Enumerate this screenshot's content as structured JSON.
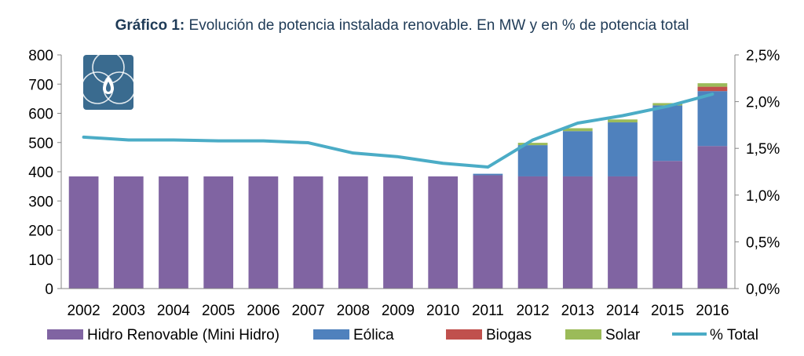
{
  "title": {
    "bold": "Gráfico 1:",
    "rest": " Evolución de potencia instalada renovable. En MW y en % de potencia total"
  },
  "colors": {
    "hidro": "#8064a2",
    "eolica": "#4f81bd",
    "biogas": "#c0504d",
    "solar": "#9bbb59",
    "line": "#4bacc6",
    "axis": "#868686",
    "logo_bg": "#3a6b8f"
  },
  "logo": {
    "icon": "water-drop-logo-icon"
  },
  "chart_data": {
    "type": "bar",
    "stacked": true,
    "categories": [
      "2002",
      "2003",
      "2004",
      "2005",
      "2006",
      "2007",
      "2008",
      "2009",
      "2010",
      "2011",
      "2012",
      "2013",
      "2014",
      "2015",
      "2016"
    ],
    "series": [
      {
        "name": "Hidro Renovable (Mini Hidro)",
        "color_key": "hidro",
        "values": [
          384,
          384,
          384,
          384,
          384,
          384,
          384,
          384,
          384,
          388,
          384,
          384,
          384,
          437,
          488
        ]
      },
      {
        "name": "Eólica",
        "color_key": "eolica",
        "values": [
          0,
          0,
          0,
          0,
          0,
          0,
          0,
          0,
          0,
          5,
          107,
          155,
          185,
          190,
          188
        ]
      },
      {
        "name": "Biogas",
        "color_key": "biogas",
        "values": [
          0,
          0,
          0,
          0,
          0,
          0,
          0,
          0,
          0,
          0,
          0,
          0,
          0,
          0,
          15
        ]
      },
      {
        "name": "Solar",
        "color_key": "solar",
        "values": [
          0,
          0,
          0,
          0,
          0,
          0,
          0,
          0,
          0,
          0,
          8,
          10,
          10,
          8,
          12
        ]
      }
    ],
    "line_series": {
      "name": "% Total",
      "color_key": "line",
      "axis": "right",
      "values": [
        1.62,
        1.59,
        1.59,
        1.58,
        1.58,
        1.56,
        1.45,
        1.41,
        1.34,
        1.3,
        1.59,
        1.77,
        1.85,
        1.95,
        2.08
      ]
    },
    "y_left": {
      "min": 0,
      "max": 800,
      "ticks": [
        "0",
        "100",
        "200",
        "300",
        "400",
        "500",
        "600",
        "700",
        "800"
      ]
    },
    "y_right": {
      "min": 0,
      "max": 2.5,
      "ticks": [
        "0,0%",
        "0,5%",
        "1,0%",
        "1,5%",
        "2,0%",
        "2,5%"
      ]
    },
    "grid": false,
    "legend_position": "bottom",
    "legend": [
      "Hidro Renovable (Mini Hidro)",
      "Eólica",
      "Biogas",
      "Solar",
      "% Total"
    ]
  }
}
